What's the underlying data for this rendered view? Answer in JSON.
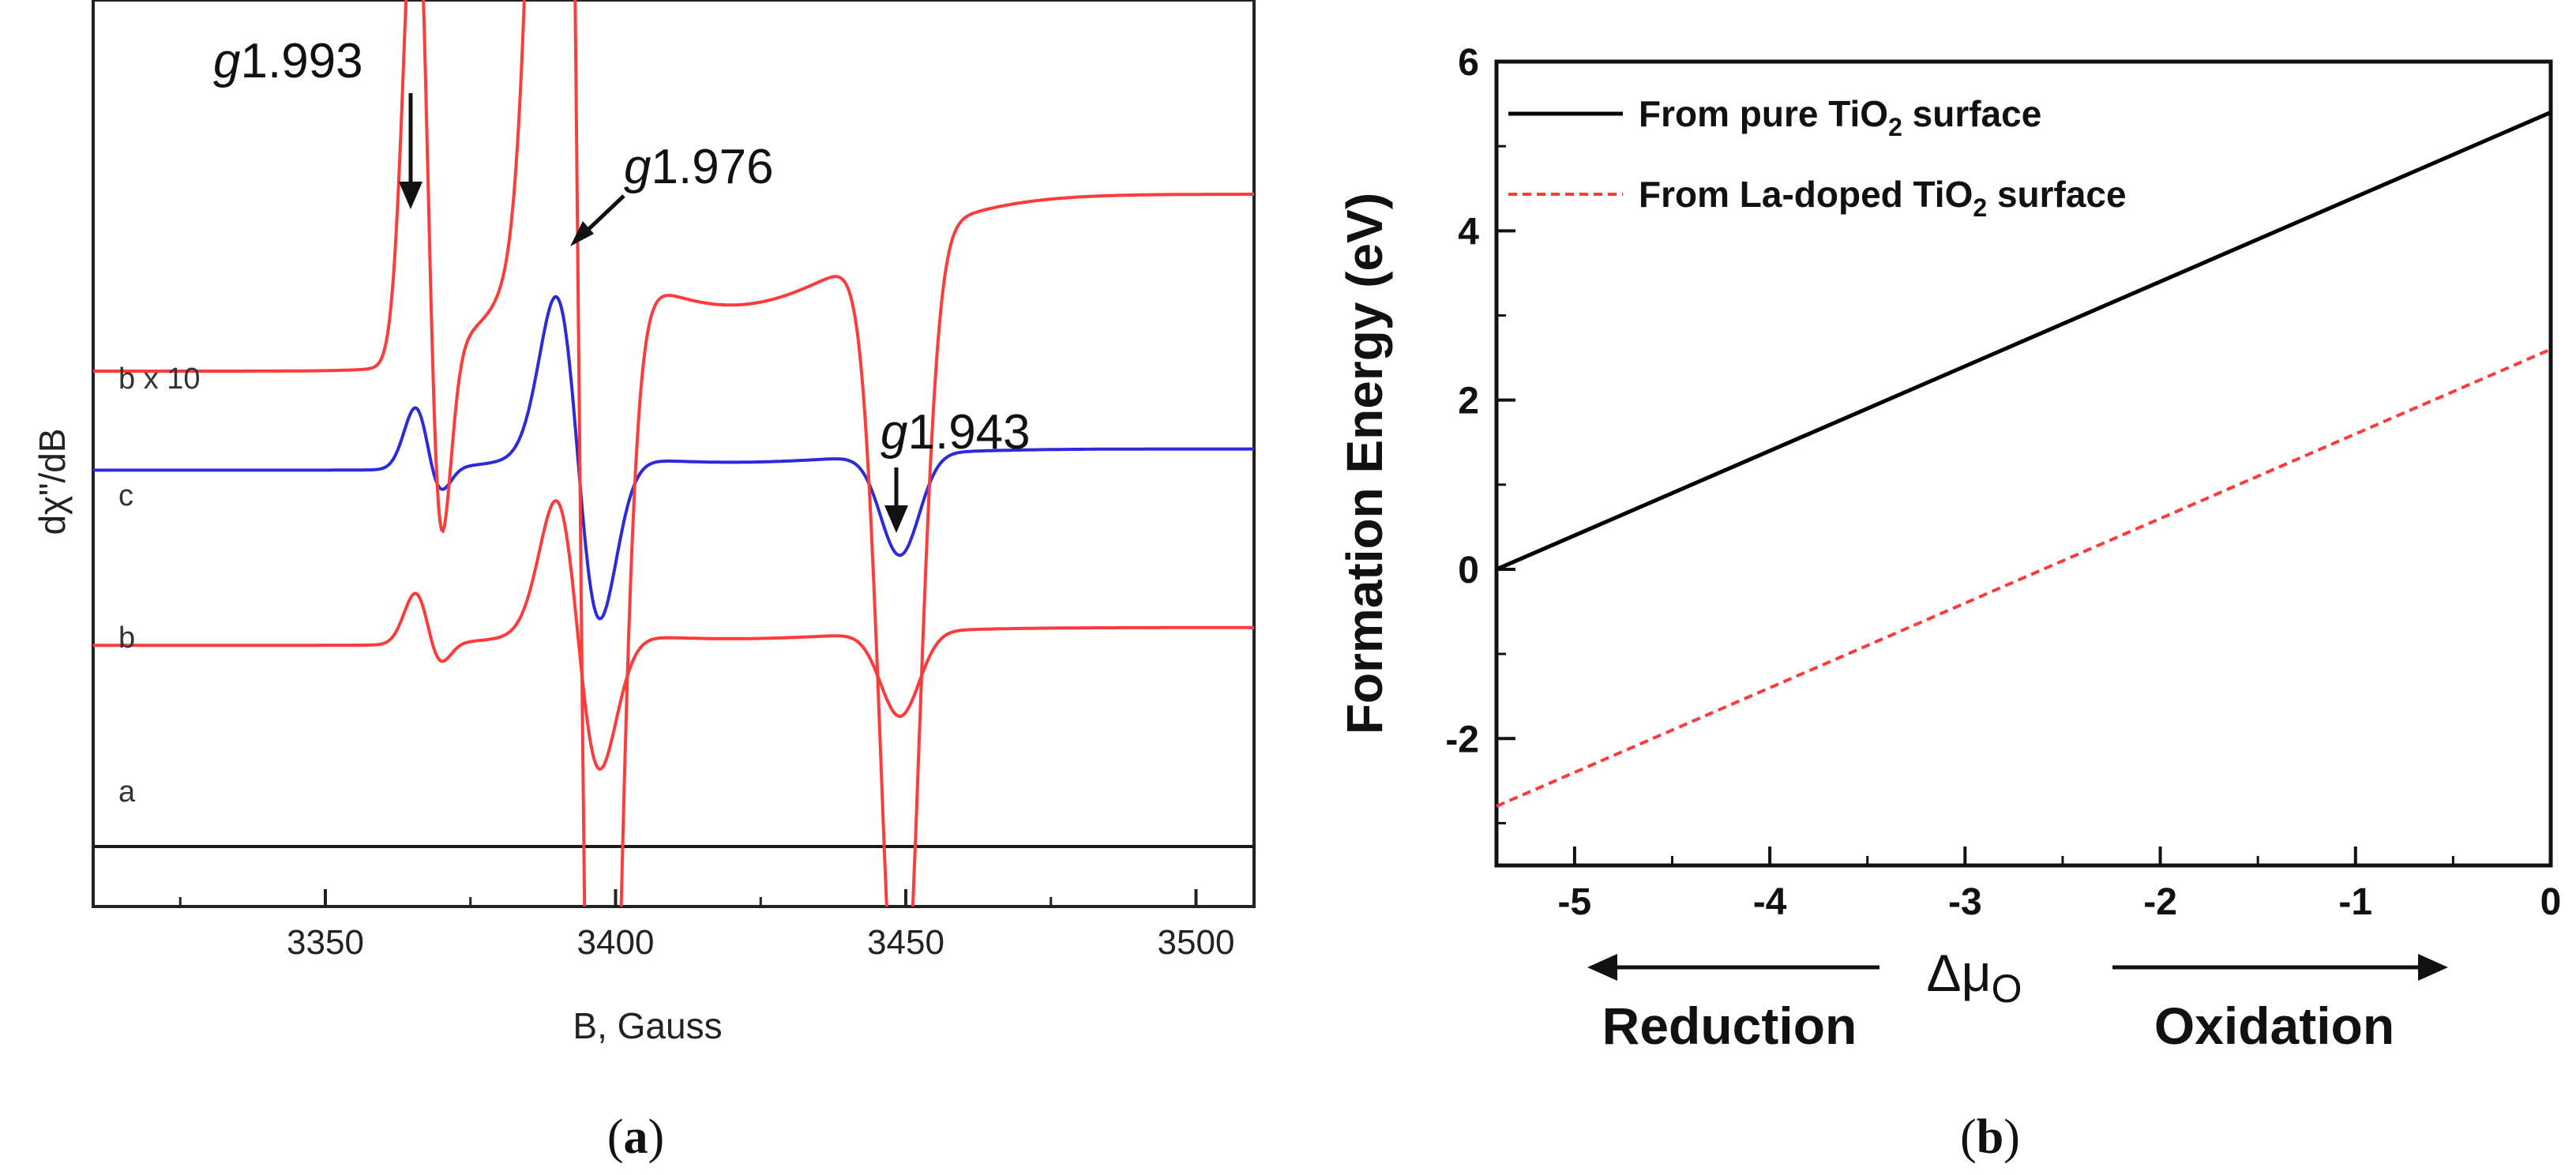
{
  "chart_data": [
    {
      "type": "line",
      "panel_label": "a",
      "xlabel": "B, Gauss",
      "ylabel": "dχ\"/dB",
      "xlim": [
        3310,
        3510
      ],
      "x_ticks": [
        3350,
        3400,
        3450,
        3500
      ],
      "grid": false,
      "series": [
        {
          "name": "a",
          "color": "#1a1a1a",
          "baseline": 0.1,
          "amplitude": 0.0
        },
        {
          "name": "b",
          "color": "#ff3b3b",
          "baseline": 1.05,
          "amplitude": 1.0
        },
        {
          "name": "c",
          "color": "#2b2bd9",
          "baseline": 1.85,
          "amplitude": 1.2
        },
        {
          "name": "b x 10",
          "color": "#ff3b3b",
          "baseline": 2.65,
          "amplitude": 10.0
        }
      ],
      "peaks": [
        {
          "g": "1.993",
          "field": 3366
        },
        {
          "g": "1.976",
          "field": 3392
        },
        {
          "g": "1.943",
          "field": 3449
        }
      ],
      "annotations": [
        "g=1.993",
        "g=1.976",
        "g=1.943"
      ]
    },
    {
      "type": "line",
      "panel_label": "b",
      "xlabel": "Δμ",
      "xlabel_subscript": "O",
      "ylabel": "Formation Energy (eV)",
      "xlim": [
        -5.4,
        0
      ],
      "ylim": [
        -3.5,
        6
      ],
      "x_ticks": [
        -5,
        -4,
        -3,
        -2,
        -1,
        0
      ],
      "y_ticks": [
        -2,
        0,
        2,
        4,
        6
      ],
      "grid": false,
      "legend_position": "top-left",
      "series": [
        {
          "name": "From pure TiO2 surface",
          "color": "#000000",
          "style": "solid",
          "x": [
            -5.4,
            0
          ],
          "y": [
            0.0,
            5.4
          ]
        },
        {
          "name": "From La-doped TiO2 surface",
          "color": "#ff3b3b",
          "style": "dashed",
          "x": [
            -5.4,
            0
          ],
          "y": [
            -2.8,
            2.6
          ]
        }
      ],
      "legend": [
        {
          "prefix": "From pure TiO",
          "sub": "2",
          "suffix": " surface"
        },
        {
          "prefix": "From La-doped TiO",
          "sub": "2",
          "suffix": " surface"
        }
      ],
      "arrows": {
        "left": "Reduction",
        "right": "Oxidation"
      }
    }
  ]
}
